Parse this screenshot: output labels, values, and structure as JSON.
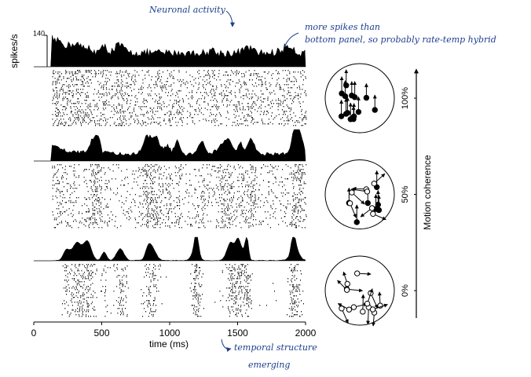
{
  "chart_data": {
    "type": "raster",
    "xlabel": "time (ms)",
    "ylabel": "spikes/s",
    "xlim": [
      0,
      2000
    ],
    "xticks": [
      0,
      500,
      1000,
      1500,
      2000
    ],
    "rate_tick": 140,
    "side_label": "Motion coherence",
    "panels": [
      {
        "coherence": {
          "value": 100,
          "label": "100%"
        }
      },
      {
        "coherence": {
          "value": 50,
          "label": "50%"
        }
      },
      {
        "coherence": {
          "value": 0,
          "label": "0%"
        }
      }
    ]
  },
  "annotations": [
    "Neuronal activity",
    "more spikes than",
    "bottom panel, so probably rate-temp hybrid",
    "temporal structure",
    "emerging"
  ]
}
